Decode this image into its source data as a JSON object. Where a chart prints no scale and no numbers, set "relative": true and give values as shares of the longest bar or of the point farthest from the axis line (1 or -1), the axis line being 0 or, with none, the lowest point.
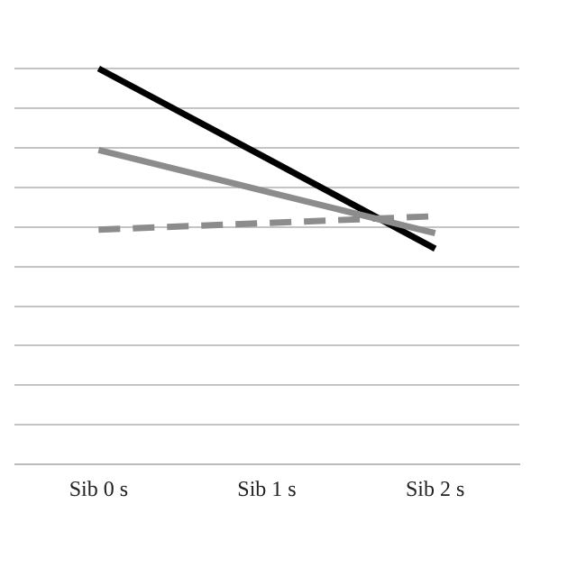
{
  "chart_data": {
    "type": "line",
    "relative": true,
    "grid": "y",
    "legend": false,
    "marker": "none",
    "categories": [
      "Sib 0 s",
      "Sib 1 s",
      "Sib 2 s"
    ],
    "series": [
      {
        "color": "#8c8c8c",
        "values": [
          0.794,
          0.689,
          0.584
        ],
        "line_style": "solid"
      },
      {
        "color": "#8c8c8c",
        "values": [
          0.593,
          0.61,
          0.627
        ],
        "line_style": "dashed"
      },
      {
        "color": "#000000",
        "values": [
          1,
          0.773,
          0.545
        ],
        "line_style": "solid"
      }
    ]
  }
}
